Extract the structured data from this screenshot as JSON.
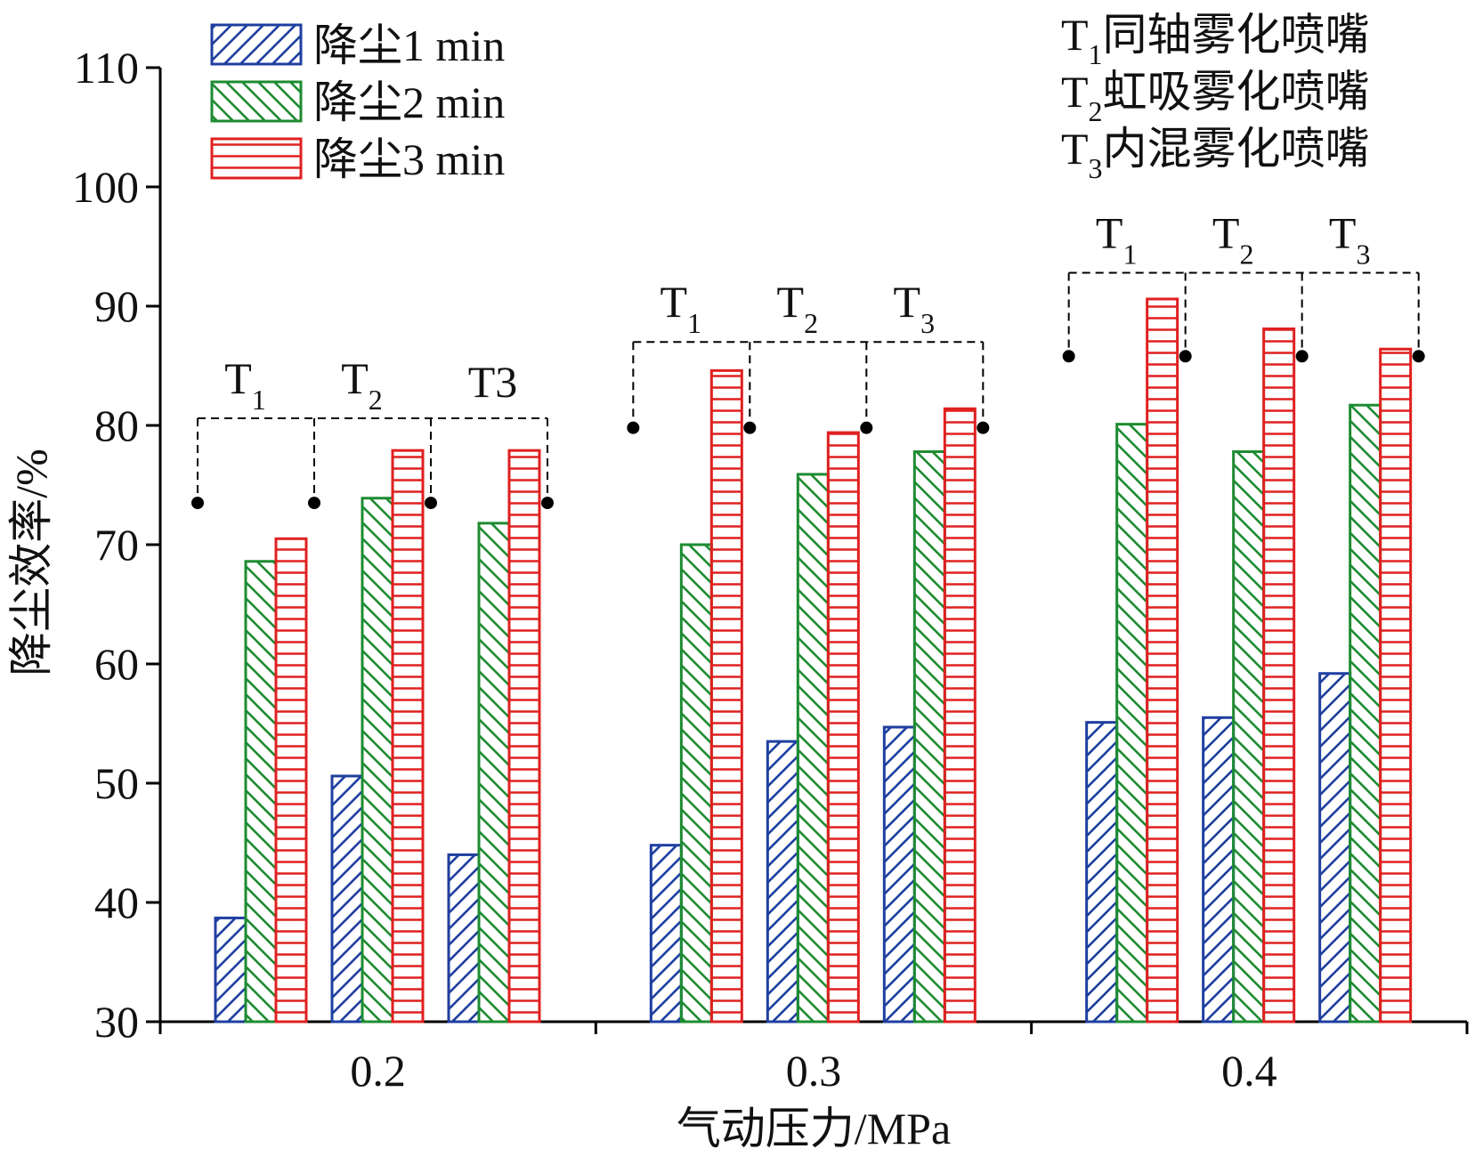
{
  "chart_data": {
    "type": "bar",
    "xlabel": "气动压力/MPa",
    "ylabel": "降尘效率/%",
    "ylim": [
      30,
      110
    ],
    "yticks": [
      30,
      40,
      50,
      60,
      70,
      80,
      90,
      100,
      110
    ],
    "grid": false,
    "legend_position": "top-left",
    "pressures": [
      "0.2",
      "0.3",
      "0.4"
    ],
    "nozzles": [
      "T1",
      "T2",
      "T3"
    ],
    "nozzle_label_main": "T",
    "nozzle_label_sub": [
      "1",
      "2",
      "3"
    ],
    "nozzle_label_plain_03": "T3",
    "nozzle_notes": [
      {
        "main": "T",
        "sub": "1",
        "rest": "同轴雾化喷嘴"
      },
      {
        "main": "T",
        "sub": "2",
        "rest": "虹吸雾化喷嘴"
      },
      {
        "main": "T",
        "sub": "3",
        "rest": "内混雾化喷嘴"
      }
    ],
    "series": [
      {
        "name": "降尘1 min",
        "color": "#1f3fa0",
        "pattern": "diag-up",
        "values": [
          [
            38.7,
            50.6,
            44.0
          ],
          [
            44.8,
            53.5,
            54.7
          ],
          [
            55.1,
            55.5,
            59.2
          ]
        ]
      },
      {
        "name": "降尘2 min",
        "color": "#1e8c32",
        "pattern": "diag-down",
        "values": [
          [
            68.6,
            73.9,
            71.8
          ],
          [
            70.0,
            75.9,
            77.8
          ],
          [
            80.1,
            77.8,
            81.7
          ]
        ]
      },
      {
        "name": "降尘3 min",
        "color": "#e02020",
        "pattern": "horiz",
        "values": [
          [
            70.5,
            77.9,
            77.9
          ],
          [
            84.6,
            79.4,
            81.4
          ],
          [
            90.6,
            88.1,
            86.4
          ]
        ]
      }
    ],
    "bracket_levels": [
      80.6,
      87.0,
      92.8
    ],
    "bracket_dot_levels": [
      73.5,
      79.8,
      85.8
    ]
  }
}
